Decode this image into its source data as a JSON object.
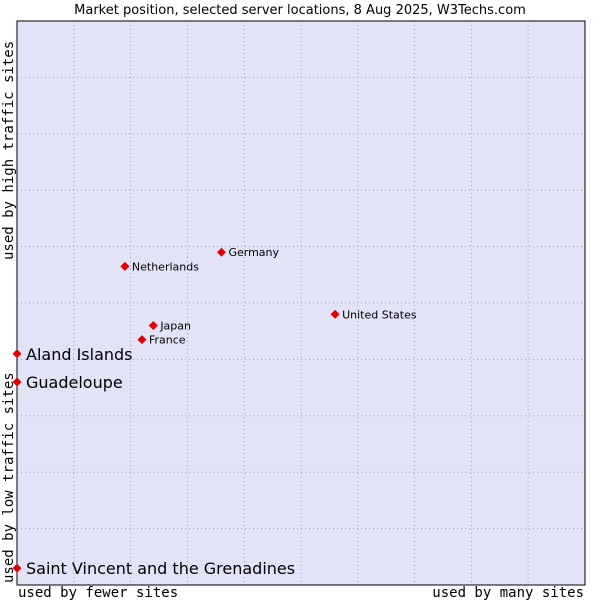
{
  "chart_data": {
    "type": "scatter",
    "title": "Market position, selected server locations, 8 Aug 2025, W3Techs.com",
    "xlabel_left": "used by fewer sites",
    "xlabel_right": "used by many sites",
    "ylabel_bottom": "used by low traffic sites",
    "ylabel_top": "used by high traffic sites",
    "xlim": [
      0,
      10
    ],
    "ylim": [
      0,
      10
    ],
    "grid": true,
    "colors": {
      "plot_bg": "#e3e3f8",
      "grid": "#9a9ab0",
      "marker": "#e00000",
      "frame": "#000000"
    },
    "points": [
      {
        "name": "Germany",
        "x": 3.6,
        "y": 5.9,
        "highlight": false
      },
      {
        "name": "Netherlands",
        "x": 1.9,
        "y": 5.65,
        "highlight": false
      },
      {
        "name": "United States",
        "x": 5.6,
        "y": 4.8,
        "highlight": false
      },
      {
        "name": "Japan",
        "x": 2.4,
        "y": 4.6,
        "highlight": false
      },
      {
        "name": "France",
        "x": 2.2,
        "y": 4.35,
        "highlight": false
      },
      {
        "name": "Aland Islands",
        "x": 0.0,
        "y": 4.1,
        "highlight": true
      },
      {
        "name": "Guadeloupe",
        "x": 0.0,
        "y": 3.6,
        "highlight": true
      },
      {
        "name": "Saint Vincent and the Grenadines",
        "x": 0.0,
        "y": 0.3,
        "highlight": true
      }
    ]
  }
}
